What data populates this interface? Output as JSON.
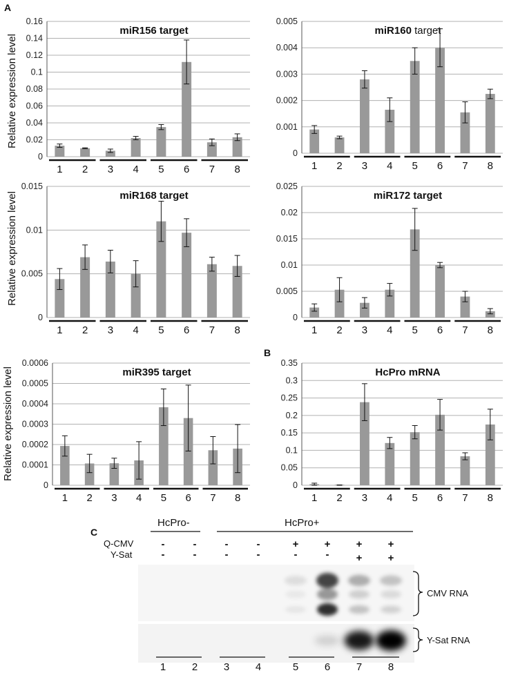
{
  "panel_labels": {
    "A": "A",
    "B": "B",
    "C": "C"
  },
  "chart_data": [
    {
      "id": "mir156",
      "type": "bar",
      "title_bold": "miR156 target",
      "title_normal": "",
      "ylabel": "Relative expression level",
      "categories": [
        "1",
        "2",
        "3",
        "4",
        "5",
        "6",
        "7",
        "8"
      ],
      "values": [
        0.013,
        0.01,
        0.007,
        0.022,
        0.035,
        0.112,
        0.017,
        0.023
      ],
      "errors": [
        0.002,
        0.0005,
        0.002,
        0.002,
        0.003,
        0.026,
        0.004,
        0.004
      ],
      "ylim": [
        0,
        0.16
      ],
      "yticks": [
        0,
        0.02,
        0.04,
        0.06,
        0.08,
        0.1,
        0.12,
        0.14,
        0.16
      ],
      "ytick_labels": [
        "0",
        "0.02",
        "0.04",
        "0.06",
        "0.08",
        "0.1",
        "0.12",
        "0.14",
        "0.16"
      ],
      "grid": true
    },
    {
      "id": "mir160",
      "type": "bar",
      "title_bold": "miR160",
      "title_normal": " target",
      "ylabel": "",
      "categories": [
        "1",
        "2",
        "3",
        "4",
        "5",
        "6",
        "7",
        "8"
      ],
      "values": [
        0.0009,
        0.0006,
        0.0028,
        0.00165,
        0.0035,
        0.004,
        0.00155,
        0.00225
      ],
      "errors": [
        0.00015,
        5e-05,
        0.00033,
        0.00045,
        0.0005,
        0.00072,
        0.0004,
        0.00018
      ],
      "ylim": [
        0,
        0.005
      ],
      "yticks": [
        0,
        0.001,
        0.002,
        0.003,
        0.004,
        0.005
      ],
      "ytick_labels": [
        "0",
        "0.001",
        "0.002",
        "0.003",
        "0.004",
        "0.005"
      ],
      "grid": true
    },
    {
      "id": "mir168",
      "type": "bar",
      "title_bold": "miR168 target",
      "title_normal": "",
      "ylabel": "Relative expression level",
      "categories": [
        "1",
        "2",
        "3",
        "4",
        "5",
        "6",
        "7",
        "8"
      ],
      "values": [
        0.0044,
        0.0069,
        0.0064,
        0.005,
        0.011,
        0.0097,
        0.0061,
        0.0059
      ],
      "errors": [
        0.0012,
        0.0014,
        0.0013,
        0.0015,
        0.0023,
        0.0016,
        0.0008,
        0.0012
      ],
      "ylim": [
        0,
        0.015
      ],
      "yticks": [
        0,
        0.005,
        0.01,
        0.015
      ],
      "ytick_labels": [
        "0",
        "0.005",
        "0.01",
        "0.015"
      ],
      "grid": true
    },
    {
      "id": "mir172",
      "type": "bar",
      "title_bold": "miR172 target",
      "title_normal": "",
      "ylabel": "",
      "categories": [
        "1",
        "2",
        "3",
        "4",
        "5",
        "6",
        "7",
        "8"
      ],
      "values": [
        0.0019,
        0.0053,
        0.0028,
        0.0053,
        0.0168,
        0.01,
        0.004,
        0.0012
      ],
      "errors": [
        0.0007,
        0.0023,
        0.001,
        0.0012,
        0.004,
        0.0005,
        0.001,
        0.0005
      ],
      "ylim": [
        0,
        0.025
      ],
      "yticks": [
        0,
        0.005,
        0.01,
        0.015,
        0.02,
        0.025
      ],
      "ytick_labels": [
        "0",
        "0.005",
        "0.01",
        "0.015",
        "0.02",
        "0.025"
      ],
      "grid": true
    },
    {
      "id": "mir395",
      "type": "bar",
      "title_bold": "miR395 target",
      "title_normal": "",
      "ylabel": "Relative expression level",
      "categories": [
        "1",
        "2",
        "3",
        "4",
        "5",
        "6",
        "7",
        "8"
      ],
      "values": [
        0.000193,
        0.000107,
        0.000108,
        0.000122,
        0.000383,
        0.00033,
        0.000172,
        0.00018
      ],
      "errors": [
        5e-05,
        4.5e-05,
        2.5e-05,
        9.2e-05,
        9e-05,
        0.000162,
        6.7e-05,
        0.000118
      ],
      "ylim": [
        0,
        0.0006
      ],
      "yticks": [
        0,
        0.0001,
        0.0002,
        0.0003,
        0.0004,
        0.0005,
        0.0006
      ],
      "ytick_labels": [
        "0",
        "0.0001",
        "0.0002",
        "0.0003",
        "0.0004",
        "0.0005",
        "0.0006"
      ],
      "grid": true
    },
    {
      "id": "hcpro",
      "type": "bar",
      "title_bold": "HcPro mRNA",
      "title_normal": "",
      "ylabel": "",
      "categories": [
        "1",
        "2",
        "3",
        "4",
        "5",
        "6",
        "7",
        "8"
      ],
      "values": [
        0.003,
        0.0005,
        0.238,
        0.121,
        0.152,
        0.202,
        0.083,
        0.174
      ],
      "errors": [
        0.003,
        0.0005,
        0.053,
        0.016,
        0.019,
        0.044,
        0.01,
        0.044
      ],
      "ylim": [
        0,
        0.35
      ],
      "yticks": [
        0,
        0.05,
        0.1,
        0.15,
        0.2,
        0.25,
        0.3,
        0.35
      ],
      "ytick_labels": [
        "0",
        "0.05",
        "0.1",
        "0.15",
        "0.2",
        "0.25",
        "0.3",
        "0.35"
      ],
      "grid": true
    }
  ],
  "blot": {
    "hcpro_minus": "HcPro-",
    "hcpro_plus": "HcPro+",
    "row1_label": "Q-CMV",
    "row2_label": "Y-Sat",
    "row1_signs": [
      "-",
      "-",
      "-",
      "-",
      "+",
      "+",
      "+",
      "+"
    ],
    "row2_signs": [
      "-",
      "-",
      "-",
      "-",
      "-",
      "-",
      "+",
      "+"
    ],
    "cmv_label": "CMV RNA",
    "ysat_label": "Y-Sat RNA",
    "lanes": [
      "1",
      "2",
      "3",
      "4",
      "5",
      "6",
      "7",
      "8"
    ],
    "cmv_intensity": [
      0,
      0,
      0,
      0,
      0.12,
      0.85,
      0.35,
      0.25
    ],
    "ysat_intensity": [
      0,
      0,
      0,
      0,
      0,
      0.15,
      0.9,
      1.0
    ]
  },
  "colors": {
    "bar": "#999999",
    "grid": "#b0b0b0",
    "axis": "#555555"
  }
}
